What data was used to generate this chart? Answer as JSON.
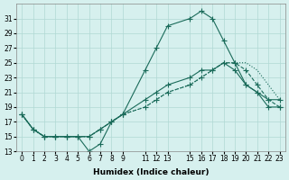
{
  "xlabel": "Humidex (Indice chaleur)",
  "background_color": "#d6f0ee",
  "grid_color": "#b0d8d4",
  "line_color": "#1a6b5a",
  "xlim": [
    -0.5,
    23.5
  ],
  "ylim": [
    13,
    33
  ],
  "xticks": [
    0,
    1,
    2,
    3,
    4,
    5,
    6,
    7,
    8,
    9,
    11,
    12,
    13,
    15,
    16,
    17,
    18,
    19,
    20,
    21,
    22,
    23
  ],
  "yticks": [
    13,
    15,
    17,
    19,
    21,
    23,
    25,
    27,
    29,
    31
  ],
  "series": [
    {
      "x": [
        0,
        1,
        2,
        3,
        4,
        5,
        6,
        7,
        8,
        9,
        11,
        12,
        13,
        15,
        16,
        17,
        18,
        19,
        20,
        21,
        22,
        23
      ],
      "y": [
        18,
        16,
        15,
        15,
        15,
        15,
        13,
        14,
        17,
        18,
        24,
        27,
        30,
        31,
        32,
        31,
        28,
        25,
        22,
        21,
        20,
        20
      ],
      "style": "-",
      "marker": "+"
    },
    {
      "x": [
        0,
        1,
        2,
        3,
        4,
        5,
        6,
        7,
        8,
        9,
        11,
        12,
        13,
        15,
        16,
        17,
        18,
        19,
        20,
        21,
        22,
        23
      ],
      "y": [
        18,
        16,
        15,
        15,
        15,
        15,
        15,
        16,
        17,
        18,
        20,
        21,
        22,
        23,
        24,
        24,
        25,
        24,
        22,
        21,
        19,
        19
      ],
      "style": "-",
      "marker": "+"
    },
    {
      "x": [
        0,
        1,
        2,
        3,
        4,
        5,
        6,
        7,
        8,
        9,
        11,
        12,
        13,
        15,
        16,
        17,
        18,
        19,
        20,
        21,
        22,
        23
      ],
      "y": [
        18,
        16,
        15,
        15,
        15,
        15,
        15,
        16,
        17,
        18,
        19,
        20,
        21,
        22,
        23,
        24,
        25,
        25,
        24,
        22,
        20,
        19
      ],
      "style": "--",
      "marker": "+"
    },
    {
      "x": [
        0,
        1,
        2,
        3,
        4,
        5,
        6,
        7,
        8,
        9,
        11,
        12,
        13,
        15,
        16,
        17,
        18,
        19,
        20,
        21,
        22,
        23
      ],
      "y": [
        18,
        16,
        15,
        15,
        15,
        15,
        15,
        16,
        17,
        18,
        19,
        20,
        21,
        22,
        23,
        24,
        25,
        25,
        25,
        24,
        22,
        20
      ],
      "style": ":",
      "marker": null
    }
  ]
}
